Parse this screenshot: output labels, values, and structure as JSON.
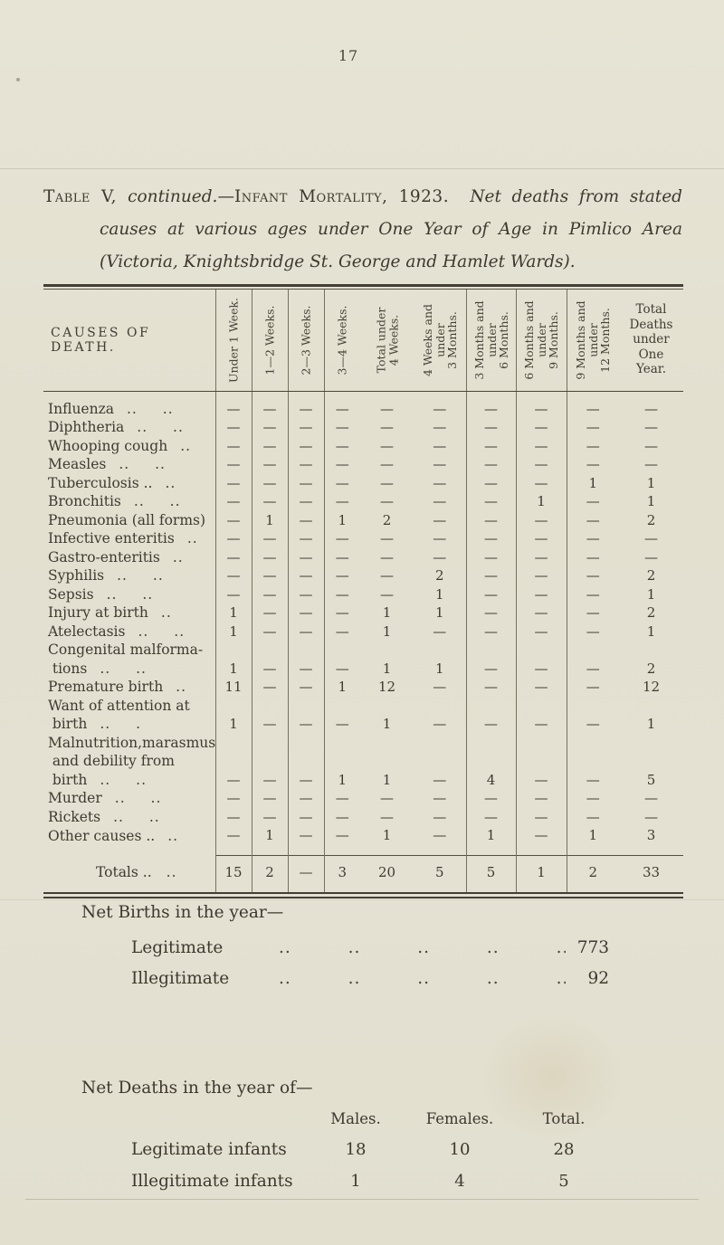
{
  "page": {
    "number": "17"
  },
  "title": {
    "line1_caps1": "Table V, ",
    "line1_italic1": "continued.",
    "line1_dash": "—",
    "line1_caps2": "Infant Mortality, 1923.",
    "line1_italic2": "Net deaths from stated",
    "line2": "causes at various ages under One Year of Age in Pimlico Area",
    "line3": "(Victoria, Knightsbridge St. George and Hamlet Wards)."
  },
  "table": {
    "causes_header": "CAUSES OF DEATH.",
    "col_headers": [
      "Under 1 Week.",
      "1—2 Weeks.",
      "2—3 Weeks.",
      "3—4 Weeks.",
      "Total under\n4 Weeks.",
      "4 Weeks and\nunder\n3 Months.",
      "3 Months and\nunder\n6 Months.",
      "6 Months and\nunder\n9 Months.",
      "9 Months and\nunder\n12 Months.",
      "Total\nDeaths\nunder\nOne\nYear."
    ],
    "rows": [
      {
        "label": "Influenza",
        "dots": ".. ..",
        "values": [
          "—",
          "—",
          "—",
          "—",
          "—",
          "—",
          "—",
          "—",
          "—",
          "—"
        ]
      },
      {
        "label": "Diphtheria",
        "dots": ".. ..",
        "values": [
          "—",
          "—",
          "—",
          "—",
          "—",
          "—",
          "—",
          "—",
          "—",
          "—"
        ]
      },
      {
        "label": "Whooping cough",
        "dots": "..",
        "values": [
          "—",
          "—",
          "—",
          "—",
          "—",
          "—",
          "—",
          "—",
          "—",
          "—"
        ]
      },
      {
        "label": "Measles",
        "dots": ".. ..",
        "values": [
          "—",
          "—",
          "—",
          "—",
          "—",
          "—",
          "—",
          "—",
          "—",
          "—"
        ]
      },
      {
        "label": "Tuberculosis ..",
        "dots": "..",
        "values": [
          "—",
          "—",
          "—",
          "—",
          "—",
          "—",
          "—",
          "—",
          "1",
          "1"
        ]
      },
      {
        "label": "Bronchitis",
        "dots": ".. ..",
        "values": [
          "—",
          "—",
          "—",
          "—",
          "—",
          "—",
          "—",
          "1",
          "—",
          "1"
        ]
      },
      {
        "label": "Pneumonia (all forms)",
        "dots": "",
        "values": [
          "—",
          "1",
          "—",
          "1",
          "2",
          "—",
          "—",
          "—",
          "—",
          "2"
        ]
      },
      {
        "label": "Infective enteritis",
        "dots": "..",
        "values": [
          "—",
          "—",
          "—",
          "—",
          "—",
          "—",
          "—",
          "—",
          "—",
          "—"
        ]
      },
      {
        "label": "Gastro-enteritis",
        "dots": "..",
        "values": [
          "—",
          "—",
          "—",
          "—",
          "—",
          "—",
          "—",
          "—",
          "—",
          "—"
        ]
      },
      {
        "label": "Syphilis",
        "dots": ".. ..",
        "values": [
          "—",
          "—",
          "—",
          "—",
          "—",
          "2",
          "—",
          "—",
          "—",
          "2"
        ]
      },
      {
        "label": "Sepsis",
        "dots": ".. ..",
        "values": [
          "—",
          "—",
          "—",
          "—",
          "—",
          "1",
          "—",
          "—",
          "—",
          "1"
        ]
      },
      {
        "label": "Injury at birth",
        "dots": "..",
        "values": [
          "1",
          "—",
          "—",
          "—",
          "1",
          "1",
          "—",
          "—",
          "—",
          "2"
        ]
      },
      {
        "label": "Atelectasis",
        "dots": ".. ..",
        "values": [
          "1",
          "—",
          "—",
          "—",
          "1",
          "—",
          "—",
          "—",
          "—",
          "1"
        ]
      },
      {
        "label": "Congenital malforma-\n  tions",
        "dots": ".. ..",
        "values": [
          "1",
          "—",
          "—",
          "—",
          "1",
          "1",
          "—",
          "—",
          "—",
          "2"
        ]
      },
      {
        "label": "Premature birth",
        "dots": "..",
        "values": [
          "11",
          "—",
          "—",
          "1",
          "12",
          "—",
          "—",
          "—",
          "—",
          "12"
        ]
      },
      {
        "label": "Want of attention at\n  birth",
        "dots": ".. .",
        "values": [
          "1",
          "—",
          "—",
          "—",
          "1",
          "—",
          "—",
          "—",
          "—",
          "1"
        ]
      },
      {
        "label": "Malnutrition,marasmus\n  and debility from\n  birth",
        "dots": ".. ..",
        "values": [
          "—",
          "—",
          "—",
          "1",
          "1",
          "—",
          "4",
          "—",
          "—",
          "5"
        ]
      },
      {
        "label": "Murder",
        "dots": ".. ..",
        "values": [
          "—",
          "—",
          "—",
          "—",
          "—",
          "—",
          "—",
          "—",
          "—",
          "—"
        ]
      },
      {
        "label": "Rickets",
        "dots": ".. ..",
        "values": [
          "—",
          "—",
          "—",
          "—",
          "—",
          "—",
          "—",
          "—",
          "—",
          "—"
        ]
      },
      {
        "label": "Other causes ..",
        "dots": "..",
        "values": [
          "—",
          "1",
          "—",
          "—",
          "1",
          "—",
          "1",
          "—",
          "1",
          "3"
        ]
      }
    ],
    "totals": {
      "label": "Totals ..",
      "dots": "..",
      "values": [
        "15",
        "2",
        "—",
        "3",
        "20",
        "5",
        "5",
        "1",
        "2",
        "33"
      ]
    }
  },
  "net_births": {
    "heading": "Net Births in the year—",
    "rows": [
      {
        "label": "Legitimate",
        "dots": ".. .. .. .. .. ..",
        "value": "773"
      },
      {
        "label": "Illegitimate",
        "dots": ".. .. .. .. .. ..",
        "value": "92"
      }
    ]
  },
  "net_deaths": {
    "heading": "Net Deaths in the year of—",
    "col_headers": [
      "Males.",
      "Females.",
      "Total."
    ],
    "rows": [
      {
        "label": "Legitimate infants",
        "values": [
          "18",
          "10",
          "28"
        ]
      },
      {
        "label": "Illegitimate infants",
        "values": [
          "1",
          "4",
          "5"
        ]
      }
    ]
  }
}
